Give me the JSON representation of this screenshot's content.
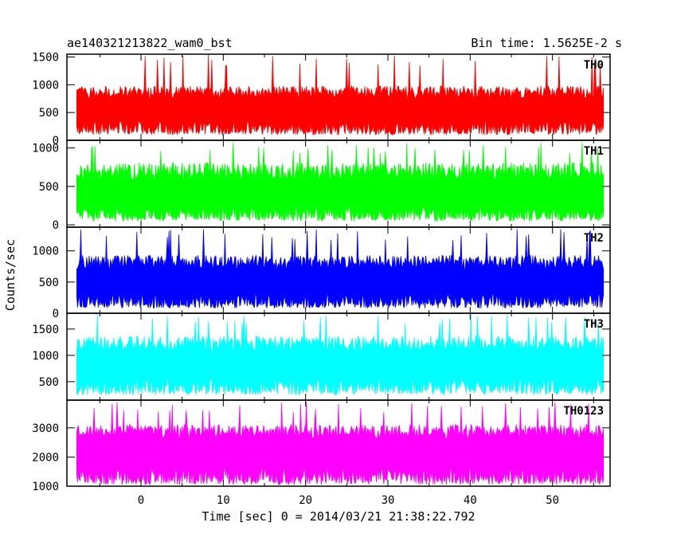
{
  "chart_data": {
    "type": "line",
    "title_left": "ae140321213822_wam0_bst",
    "title_right": "Bin time: 1.5625E-2 s",
    "xlabel": "Time [sec] 0 = 2014/03/21 21:38:22.792",
    "ylabel": "Counts/sec",
    "xlim": [
      -9,
      57
    ],
    "x_ticks": [
      0,
      10,
      20,
      30,
      40,
      50
    ],
    "x_tick_labels": [
      "0",
      "10",
      "20",
      "30",
      "40",
      "50"
    ],
    "data_x_range": [
      -7.8,
      56.2
    ],
    "panels": [
      {
        "name": "TH0",
        "color": "#ff0000",
        "ylim": [
          0,
          1550
        ],
        "y_ticks": [
          0,
          500,
          1000,
          1500
        ],
        "y_tick_labels": [
          "0",
          "500",
          "1000",
          "1500"
        ],
        "baseline_level": 100,
        "mean_level": 650,
        "spread": 300,
        "peak_level": 1550
      },
      {
        "name": "TH1",
        "color": "#00ff00",
        "ylim": [
          -30,
          1100
        ],
        "y_ticks": [
          0,
          500,
          1000
        ],
        "y_tick_labels": [
          "0",
          "500",
          "1000"
        ],
        "baseline_level": 50,
        "mean_level": 480,
        "spread": 300,
        "peak_level": 1080
      },
      {
        "name": "TH2",
        "color": "#0000ff",
        "ylim": [
          0,
          1380
        ],
        "y_ticks": [
          0,
          500,
          1000
        ],
        "y_tick_labels": [
          "0",
          "500",
          "1000"
        ],
        "baseline_level": 80,
        "mean_level": 600,
        "spread": 300,
        "peak_level": 1350
      },
      {
        "name": "TH3",
        "color": "#00ffff",
        "ylim": [
          150,
          1800
        ],
        "y_ticks": [
          500,
          1000,
          1500
        ],
        "y_tick_labels": [
          "500",
          "1000",
          "1500"
        ],
        "baseline_level": 250,
        "mean_level": 950,
        "spread": 380,
        "peak_level": 1790
      },
      {
        "name": "TH0123",
        "color": "#ff00ff",
        "ylim": [
          1000,
          3950
        ],
        "y_ticks": [
          1000,
          2000,
          3000
        ],
        "y_tick_labels": [
          "1000",
          "2000",
          "3000"
        ],
        "baseline_level": 1050,
        "mean_level": 2400,
        "spread": 650,
        "peak_level": 3900
      }
    ]
  }
}
